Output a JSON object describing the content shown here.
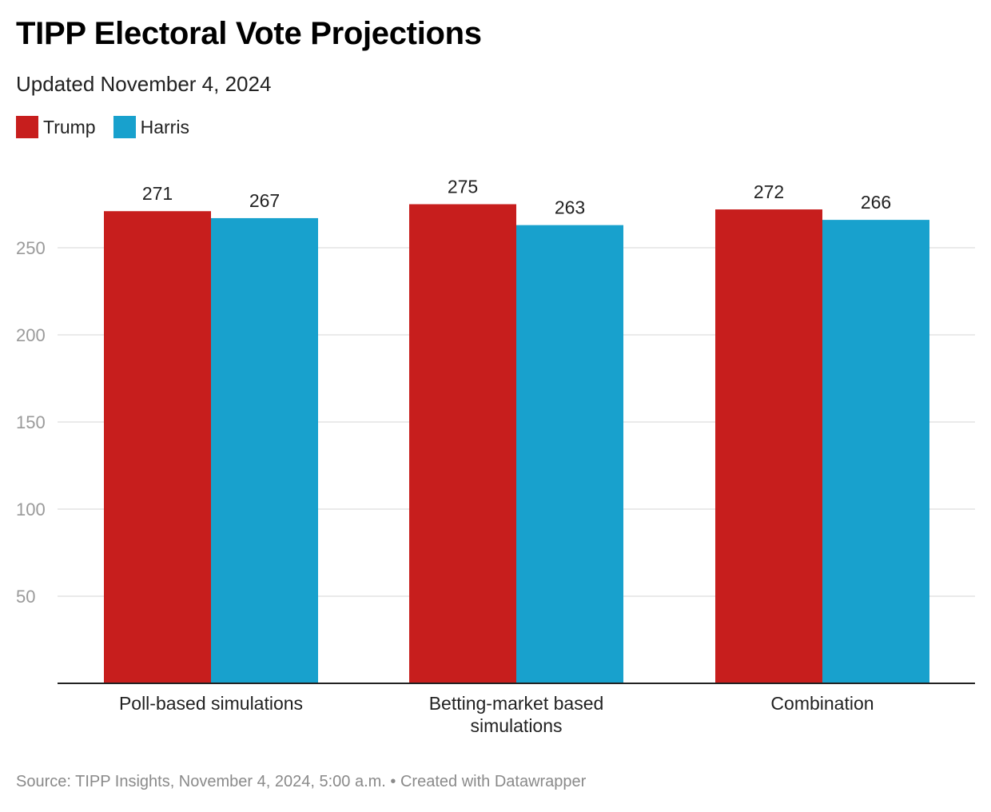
{
  "title": "TIPP Electoral Vote Projections",
  "subtitle": "Updated November 4, 2024",
  "footer": {
    "source": "Source: TIPP Insights, November 4, 2024, 5:00 a.m.",
    "separator": "•",
    "credit": "Created with Datawrapper"
  },
  "chart_data": {
    "type": "bar",
    "title": "TIPP Electoral Vote Projections",
    "subtitle": "Updated November 4, 2024",
    "xlabel": "",
    "ylabel": "",
    "categories": [
      [
        "Poll-based simulations"
      ],
      [
        "Betting-market based",
        "simulations"
      ],
      [
        "Combination"
      ]
    ],
    "series": [
      {
        "name": "Trump",
        "color": "#c71e1d",
        "values": [
          271,
          275,
          272
        ]
      },
      {
        "name": "Harris",
        "color": "#18a1cd",
        "values": [
          267,
          263,
          266
        ]
      }
    ],
    "ylim": [
      0,
      300
    ],
    "yticks": [
      50,
      100,
      150,
      200,
      250
    ],
    "grid": true,
    "legend_position": "top-left",
    "data_labels": true
  }
}
